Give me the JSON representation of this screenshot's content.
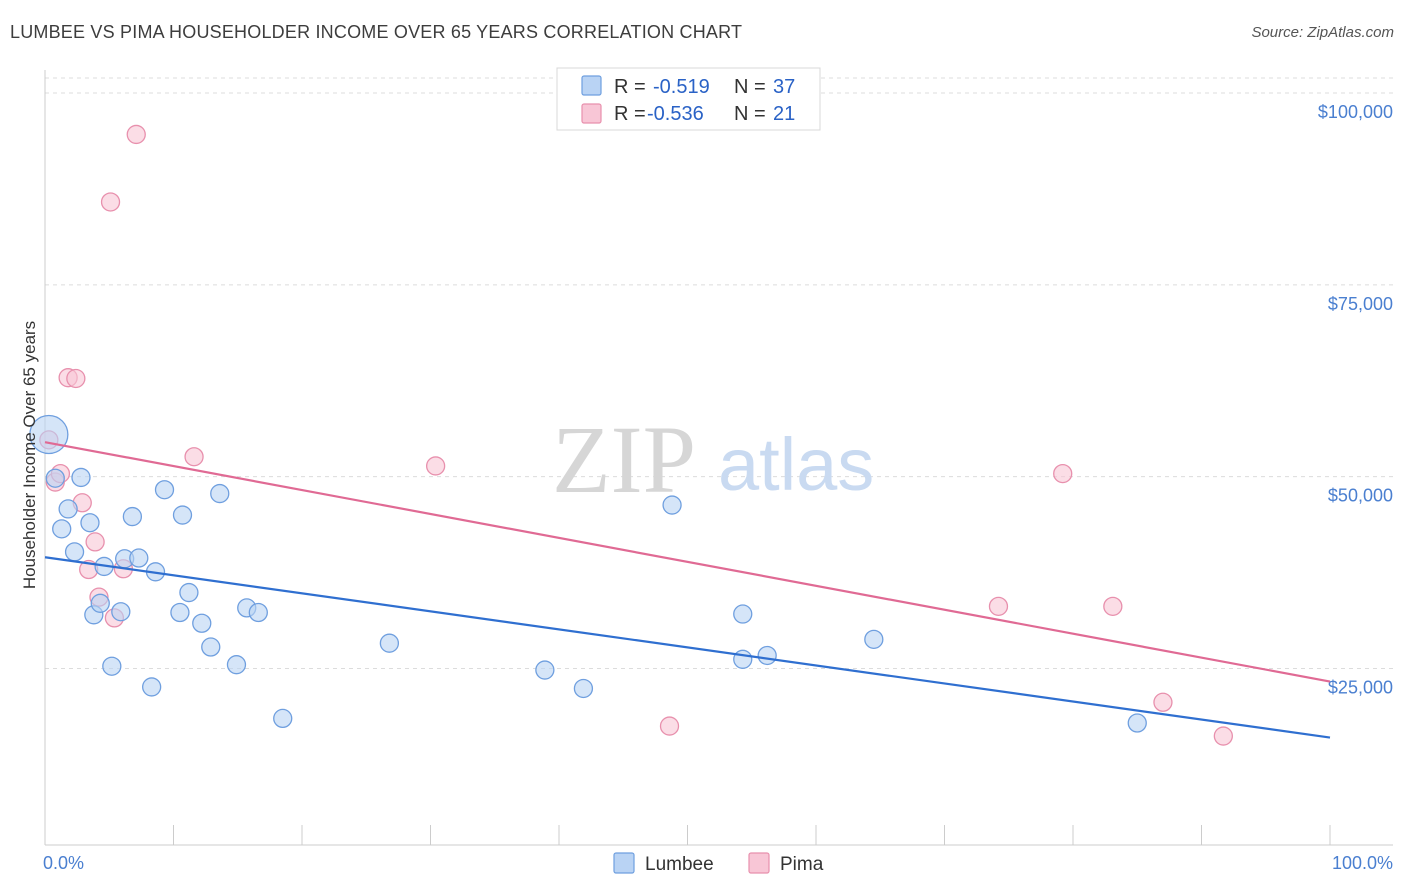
{
  "title": "LUMBEE VS PIMA HOUSEHOLDER INCOME OVER 65 YEARS CORRELATION CHART",
  "source": "Source: ZipAtlas.com",
  "watermark": {
    "zip": "ZIP",
    "atlas": "atlas"
  },
  "colors": {
    "lumbee_fill": "#b9d3f4",
    "lumbee_stroke": "#6f9fdf",
    "lumbee_line": "#2f6fd0",
    "pima_fill": "#f8c6d6",
    "pima_stroke": "#e890ad",
    "pima_line": "#e06a94",
    "tick_label": "#4a7fd0"
  },
  "legend": {
    "rows": [
      {
        "r_label": "R =",
        "r_value": "-0.519",
        "n_label": "N =",
        "n_value": "37"
      },
      {
        "r_label": "R =",
        "r_value": "-0.536",
        "n_label": "N =",
        "n_value": "21"
      }
    ]
  },
  "chart_data": {
    "type": "scatter",
    "title": "LUMBEE VS PIMA HOUSEHOLDER INCOME OVER 65 YEARS CORRELATION CHART",
    "xlabel": "",
    "ylabel": "Householder Income Over 65 years",
    "xlim": [
      0,
      100
    ],
    "ylim": [
      2000,
      103000
    ],
    "x_tick_labels": [
      "0.0%",
      "100.0%"
    ],
    "y_ticks": [
      25000,
      50000,
      75000,
      100000
    ],
    "y_tick_labels": [
      "$25,000",
      "$50,000",
      "$75,000",
      "$100,000"
    ],
    "grid": true,
    "legend_position": "bottom-center",
    "series": [
      {
        "name": "Lumbee",
        "trend": {
          "x": [
            0,
            100
          ],
          "y": [
            39500,
            16000
          ]
        },
        "points": [
          {
            "x": 0.3,
            "y": 55500,
            "big": true
          },
          {
            "x": 0.8,
            "y": 49800
          },
          {
            "x": 1.3,
            "y": 43200
          },
          {
            "x": 1.8,
            "y": 45800
          },
          {
            "x": 2.3,
            "y": 40200
          },
          {
            "x": 2.8,
            "y": 49900
          },
          {
            "x": 3.5,
            "y": 44000
          },
          {
            "x": 3.8,
            "y": 32000
          },
          {
            "x": 4.3,
            "y": 33500
          },
          {
            "x": 4.6,
            "y": 38300
          },
          {
            "x": 5.2,
            "y": 25300
          },
          {
            "x": 5.9,
            "y": 32400
          },
          {
            "x": 6.2,
            "y": 39300
          },
          {
            "x": 6.8,
            "y": 44800
          },
          {
            "x": 7.3,
            "y": 39400
          },
          {
            "x": 8.3,
            "y": 22600
          },
          {
            "x": 8.6,
            "y": 37600
          },
          {
            "x": 9.3,
            "y": 48300
          },
          {
            "x": 10.5,
            "y": 32300
          },
          {
            "x": 10.7,
            "y": 45000
          },
          {
            "x": 11.2,
            "y": 34900
          },
          {
            "x": 12.2,
            "y": 30900
          },
          {
            "x": 12.9,
            "y": 27800
          },
          {
            "x": 13.6,
            "y": 47800
          },
          {
            "x": 14.9,
            "y": 25500
          },
          {
            "x": 15.7,
            "y": 32900
          },
          {
            "x": 16.6,
            "y": 32300
          },
          {
            "x": 18.5,
            "y": 18500
          },
          {
            "x": 26.8,
            "y": 28300
          },
          {
            "x": 38.9,
            "y": 24800
          },
          {
            "x": 41.9,
            "y": 22400
          },
          {
            "x": 48.8,
            "y": 46300
          },
          {
            "x": 54.3,
            "y": 32100
          },
          {
            "x": 54.3,
            "y": 26200
          },
          {
            "x": 56.2,
            "y": 26700
          },
          {
            "x": 64.5,
            "y": 28800
          },
          {
            "x": 85.0,
            "y": 17900
          }
        ]
      },
      {
        "name": "Pima",
        "trend": {
          "x": [
            0,
            100
          ],
          "y": [
            54500,
            23300
          ]
        },
        "points": [
          {
            "x": 0.3,
            "y": 54800
          },
          {
            "x": 0.8,
            "y": 49300
          },
          {
            "x": 1.2,
            "y": 50400
          },
          {
            "x": 1.8,
            "y": 62900
          },
          {
            "x": 2.4,
            "y": 62800
          },
          {
            "x": 2.9,
            "y": 46600
          },
          {
            "x": 3.4,
            "y": 37900
          },
          {
            "x": 3.9,
            "y": 41500
          },
          {
            "x": 4.2,
            "y": 34300
          },
          {
            "x": 5.1,
            "y": 85800
          },
          {
            "x": 5.4,
            "y": 31600
          },
          {
            "x": 6.1,
            "y": 38000
          },
          {
            "x": 7.1,
            "y": 94600
          },
          {
            "x": 11.6,
            "y": 52600
          },
          {
            "x": 30.4,
            "y": 51400
          },
          {
            "x": 48.6,
            "y": 17500
          },
          {
            "x": 74.2,
            "y": 33100
          },
          {
            "x": 79.2,
            "y": 50400
          },
          {
            "x": 83.1,
            "y": 33100
          },
          {
            "x": 87.0,
            "y": 20600
          },
          {
            "x": 91.7,
            "y": 16200
          }
        ]
      }
    ]
  }
}
